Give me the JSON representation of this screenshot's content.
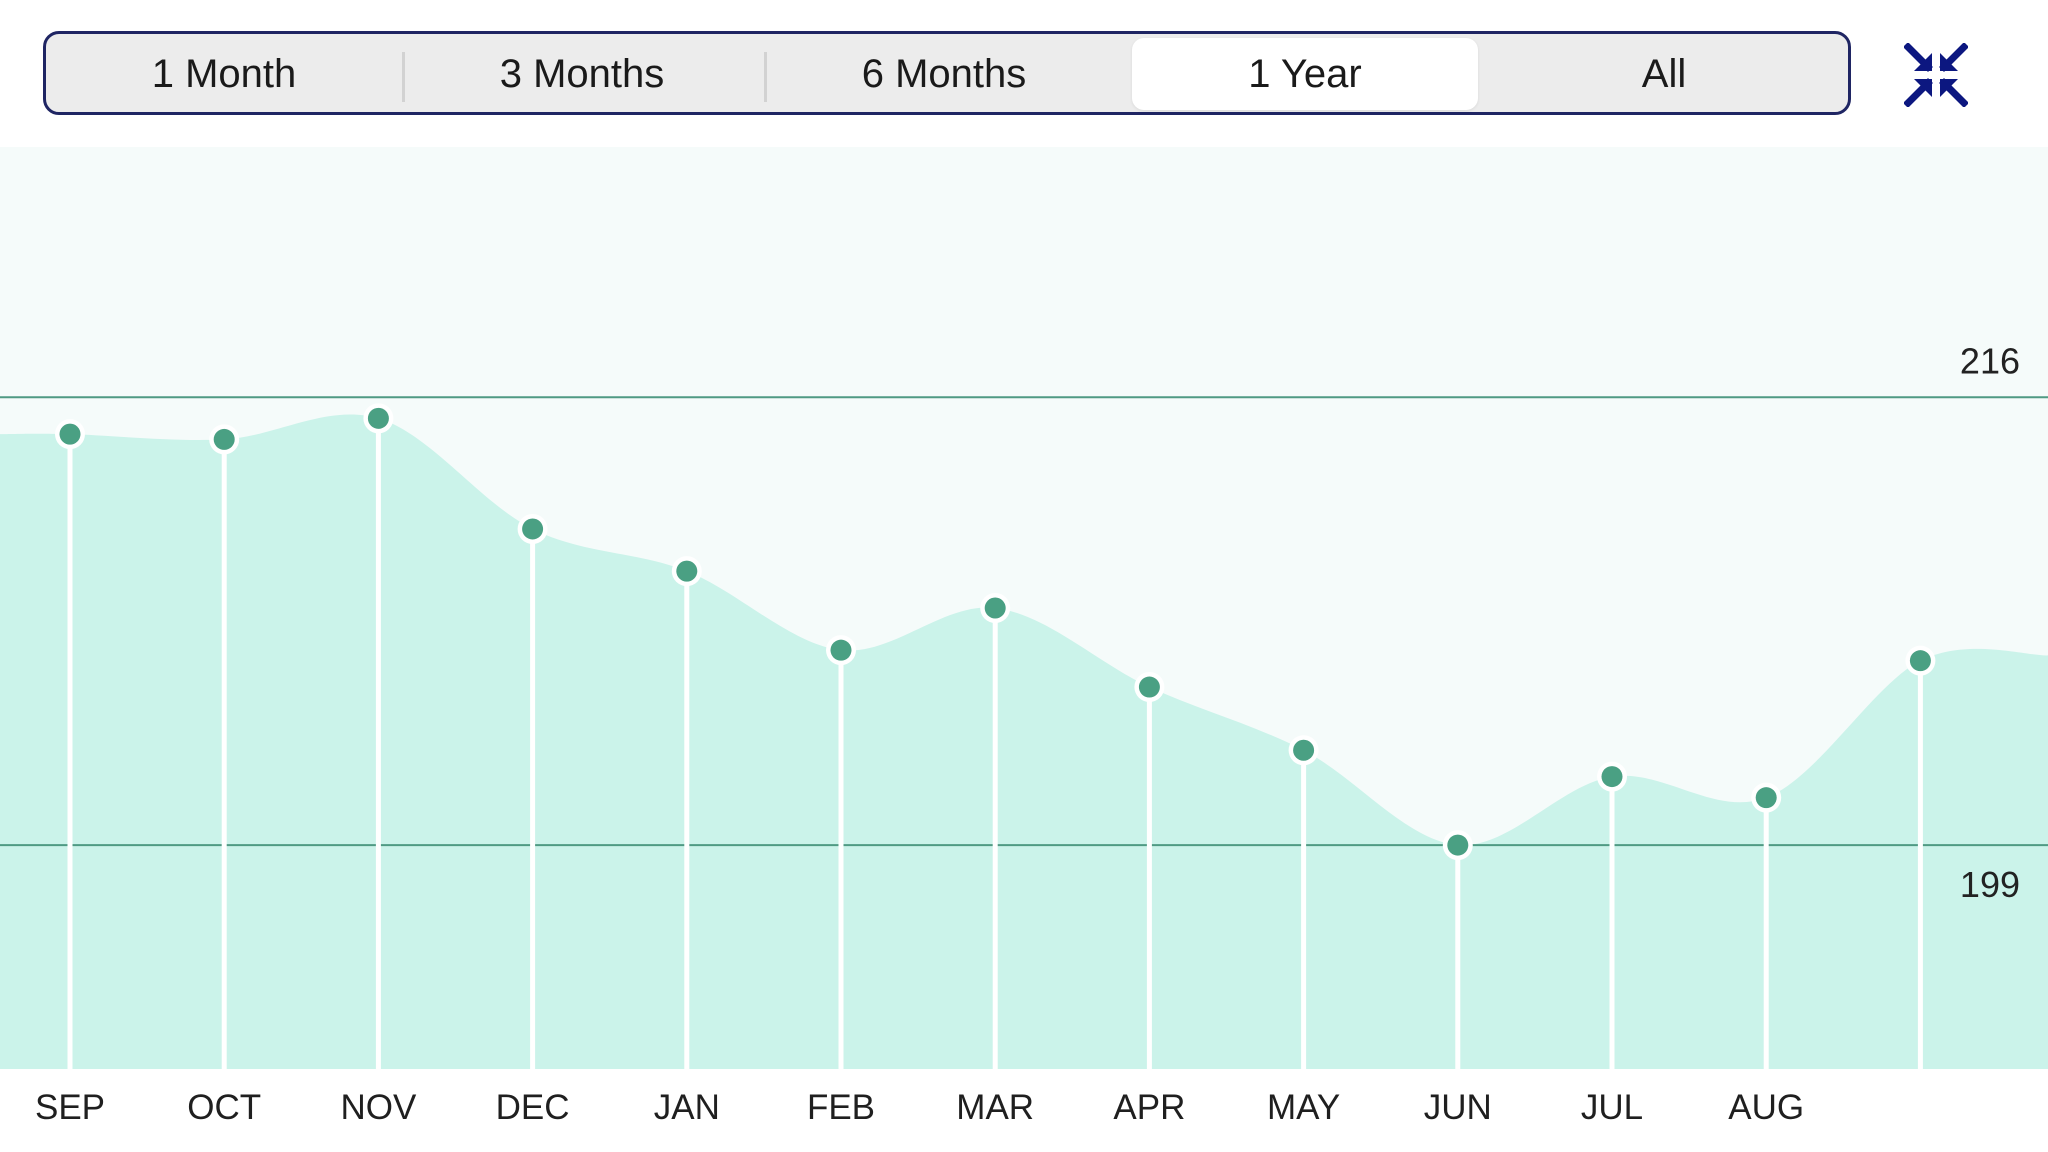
{
  "range_selector": {
    "options": [
      "1 Month",
      "3 Months",
      "6 Months",
      "1 Year",
      "All"
    ],
    "selected": "1 Year"
  },
  "collapse_button": {
    "icon": "collapse-arrows-icon"
  },
  "colors": {
    "accent": "#1f2a8a",
    "point": "#4aa083",
    "area_fill": "#cbf3ea",
    "plot_background": "#f5fbfa",
    "reference_line": "#4f9a83"
  },
  "chart_data": {
    "type": "area",
    "categories": [
      "SEP",
      "OCT",
      "NOV",
      "DEC",
      "JAN",
      "FEB",
      "MAR",
      "APR",
      "MAY",
      "JUN",
      "JUL",
      "AUG",
      ""
    ],
    "values": [
      214.6,
      214.4,
      215.2,
      211.0,
      209.4,
      206.4,
      208.0,
      205.0,
      202.6,
      199.0,
      201.6,
      200.8,
      206.0
    ],
    "reference_lines": [
      {
        "value": 216,
        "label": "216"
      },
      {
        "value": 199,
        "label": "199"
      }
    ],
    "ylim": [
      190.5,
      225.5
    ],
    "grid": false,
    "legend": "none"
  }
}
